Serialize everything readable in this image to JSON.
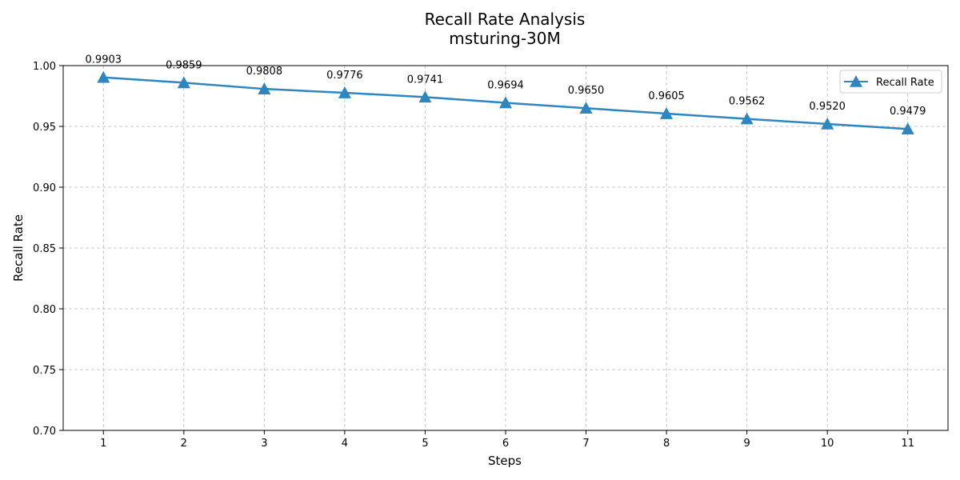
{
  "chart_data": {
    "type": "line",
    "title": "Recall Rate Analysis",
    "subtitle": "msturing-30M",
    "xlabel": "Steps",
    "ylabel": "Recall Rate",
    "x": [
      1,
      2,
      3,
      4,
      5,
      6,
      7,
      8,
      9,
      10,
      11
    ],
    "x_tick_labels": [
      "1",
      "2",
      "3",
      "4",
      "5",
      "6",
      "7",
      "8",
      "9",
      "10",
      "11"
    ],
    "ylim": [
      0.7,
      1.0
    ],
    "y_ticks": [
      0.7,
      0.75,
      0.8,
      0.85,
      0.9,
      0.95,
      1.0
    ],
    "y_tick_labels": [
      "0.70",
      "0.75",
      "0.80",
      "0.85",
      "0.90",
      "0.95",
      "1.00"
    ],
    "grid": true,
    "legend_position": "top-right",
    "series": [
      {
        "name": "Recall Rate",
        "color": "#2e86c1",
        "marker": "triangle",
        "values": [
          0.9903,
          0.9859,
          0.9808,
          0.9776,
          0.9741,
          0.9694,
          0.965,
          0.9605,
          0.9562,
          0.952,
          0.9479
        ],
        "data_labels": [
          "0.9903",
          "0.9859",
          "0.9808",
          "0.9776",
          "0.9741",
          "0.9694",
          "0.9650",
          "0.9605",
          "0.9562",
          "0.9520",
          "0.9479"
        ]
      }
    ]
  }
}
